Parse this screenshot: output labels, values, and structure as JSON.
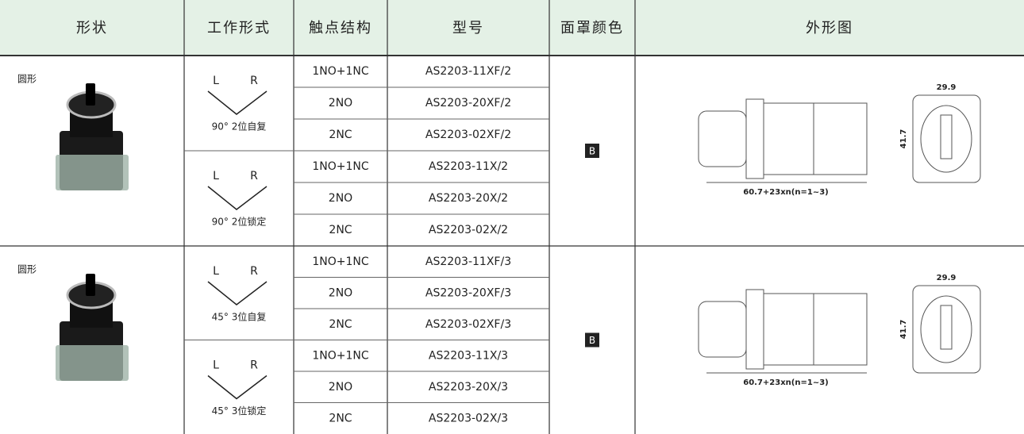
{
  "header": {
    "columns": [
      "形状",
      "工作形式",
      "触点结构",
      "型号",
      "面罩颜色",
      "外形图"
    ]
  },
  "groups": [
    {
      "shape": "圆形",
      "color": "B",
      "modes": [
        {
          "left": "L",
          "right": "R",
          "label": "90° 2位自复",
          "rows": [
            {
              "contact": "1NO+1NC",
              "model": "AS2203-11XF/2"
            },
            {
              "contact": "2NO",
              "model": "AS2203-20XF/2"
            },
            {
              "contact": "2NC",
              "model": "AS2203-02XF/2"
            }
          ]
        },
        {
          "left": "L",
          "right": "R",
          "label": "90° 2位锁定",
          "rows": [
            {
              "contact": "1NO+1NC",
              "model": "AS2203-11X/2"
            },
            {
              "contact": "2NO",
              "model": "AS2203-20X/2"
            },
            {
              "contact": "2NC",
              "model": "AS2203-02X/2"
            }
          ]
        }
      ],
      "drawing": {
        "width": "29.9",
        "height": "41.7",
        "length": "60.7+23xn(n=1~3)"
      }
    },
    {
      "shape": "圆形",
      "color": "B",
      "modes": [
        {
          "left": "L",
          "right": "R",
          "label": "45° 3位自复",
          "rows": [
            {
              "contact": "1NO+1NC",
              "model": "AS2203-11XF/3"
            },
            {
              "contact": "2NO",
              "model": "AS2203-20XF/3"
            },
            {
              "contact": "2NC",
              "model": "AS2203-02XF/3"
            }
          ]
        },
        {
          "left": "L",
          "right": "R",
          "label": "45° 3位锁定",
          "rows": [
            {
              "contact": "1NO+1NC",
              "model": "AS2203-11X/3"
            },
            {
              "contact": "2NO",
              "model": "AS2203-20X/3"
            },
            {
              "contact": "2NC",
              "model": "AS2203-02X/3"
            }
          ]
        }
      ],
      "drawing": {
        "width": "29.9",
        "height": "41.7",
        "length": "60.7+23xn(n=1~3)"
      }
    }
  ]
}
